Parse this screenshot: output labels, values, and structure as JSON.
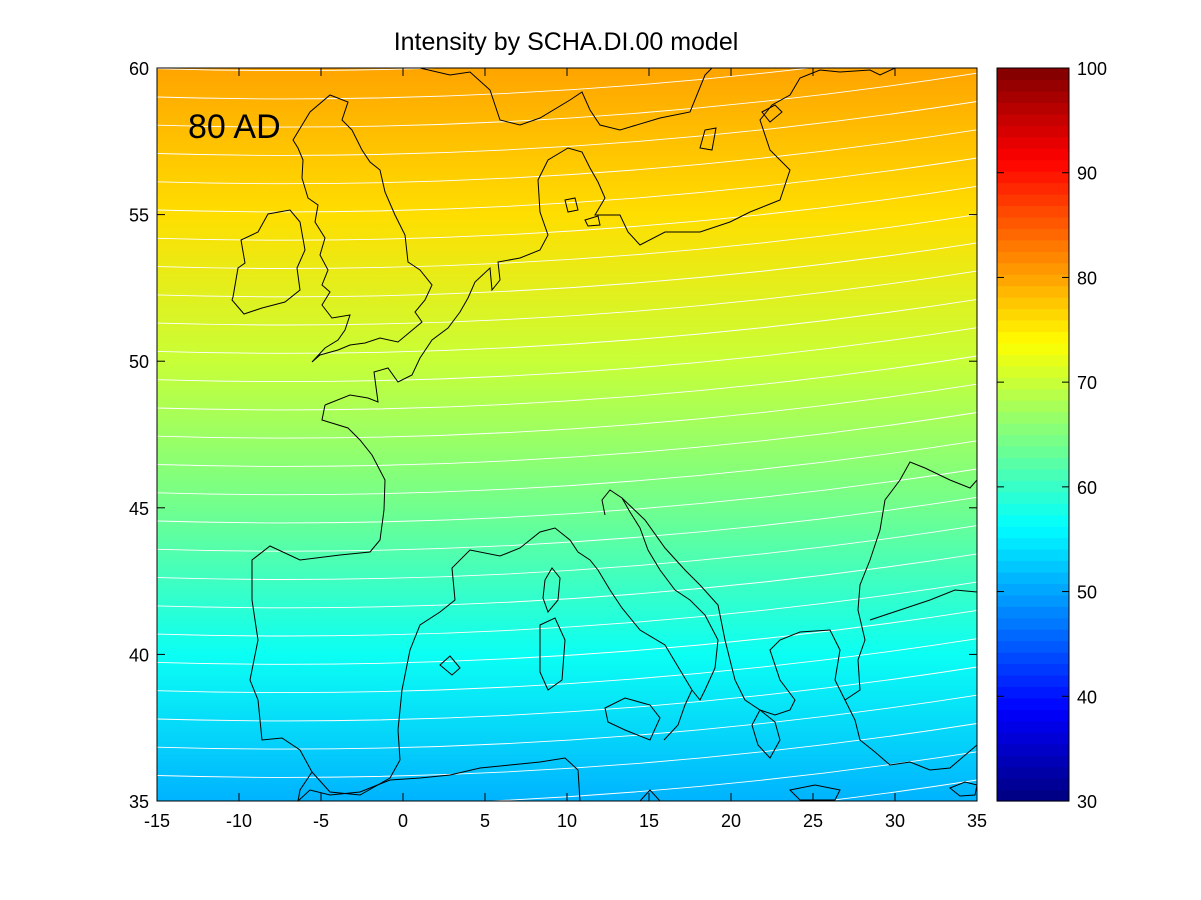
{
  "figure": {
    "title": "Intensity by SCHA.DI.00 model",
    "annotation": "80 AD"
  },
  "chart_data": {
    "type": "heatmap",
    "title": "Intensity by SCHA.DI.00 model",
    "xlabel": "",
    "ylabel": "",
    "x_ticks": [
      -15,
      -10,
      -5,
      0,
      5,
      10,
      15,
      20,
      25,
      30,
      35
    ],
    "y_ticks": [
      35,
      40,
      45,
      50,
      55,
      60
    ],
    "xlim": [
      -15,
      35
    ],
    "ylim": [
      35,
      60
    ],
    "colorbar": {
      "colormap": "jet",
      "clim": [
        30,
        100
      ],
      "ticks": [
        30,
        40,
        50,
        60,
        70,
        80,
        90,
        100
      ]
    },
    "grid": false,
    "field_samples": [
      {
        "lon": 10,
        "lat": 60,
        "value": 80
      },
      {
        "lon": 10,
        "lat": 55,
        "value": 76
      },
      {
        "lon": 10,
        "lat": 50,
        "value": 70
      },
      {
        "lon": 10,
        "lat": 45,
        "value": 64
      },
      {
        "lon": 10,
        "lat": 40,
        "value": 57
      },
      {
        "lon": 10,
        "lat": 35,
        "value": 51
      }
    ],
    "contour_count": 29,
    "coastlines": true,
    "annotation": "80 AD"
  }
}
